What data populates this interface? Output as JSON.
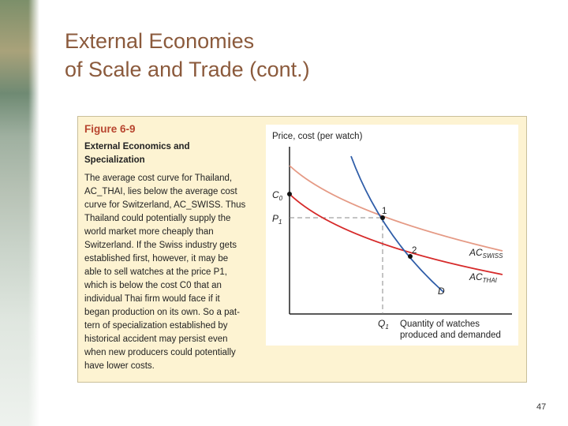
{
  "slide": {
    "title_line1": "External Economies",
    "title_line2": "of Scale and Trade (cont.)",
    "page_number": "47"
  },
  "figure": {
    "label": "Figure 6-9",
    "heading_line1": "External Economics and",
    "heading_line2": "Specialization",
    "text_lines": [
      "The average cost curve for Thailand,",
      "AC_THAI, lies below the average cost",
      "curve for Switzerland, AC_SWISS. Thus",
      "Thailand could potentially supply the",
      "world market more cheaply than",
      "Switzerland. If the Swiss industry gets",
      "established first, however, it may be",
      "able to sell watches at the price P1,",
      "which is below the cost C0 that an",
      "individual Thai firm would face if it",
      "began production on its own. So a pat-",
      "tern of specialization established by",
      "historical accident may persist even",
      "when new producers could potentially",
      "have lower costs."
    ]
  },
  "diagram": {
    "y_axis_label": "Price, cost (per watch)",
    "x_axis_label_line1": "Quantity of watches",
    "x_axis_label_line2": "produced and demanded",
    "c0_label": "C",
    "c0_sub": "0",
    "p1_label": "P",
    "p1_sub": "1",
    "q1_label": "Q",
    "q1_sub": "1",
    "point1_label": "1",
    "point2_label": "2",
    "ac_swiss_label": "AC",
    "ac_swiss_sub": "SWISS",
    "ac_thai_label": "AC",
    "ac_thai_sub": "THAI",
    "demand_label": "D",
    "colors": {
      "ac_swiss": "#e59a85",
      "ac_thai": "#d62a2a",
      "demand": "#2f5da8",
      "axis": "#222222",
      "dashed": "#888888"
    }
  }
}
